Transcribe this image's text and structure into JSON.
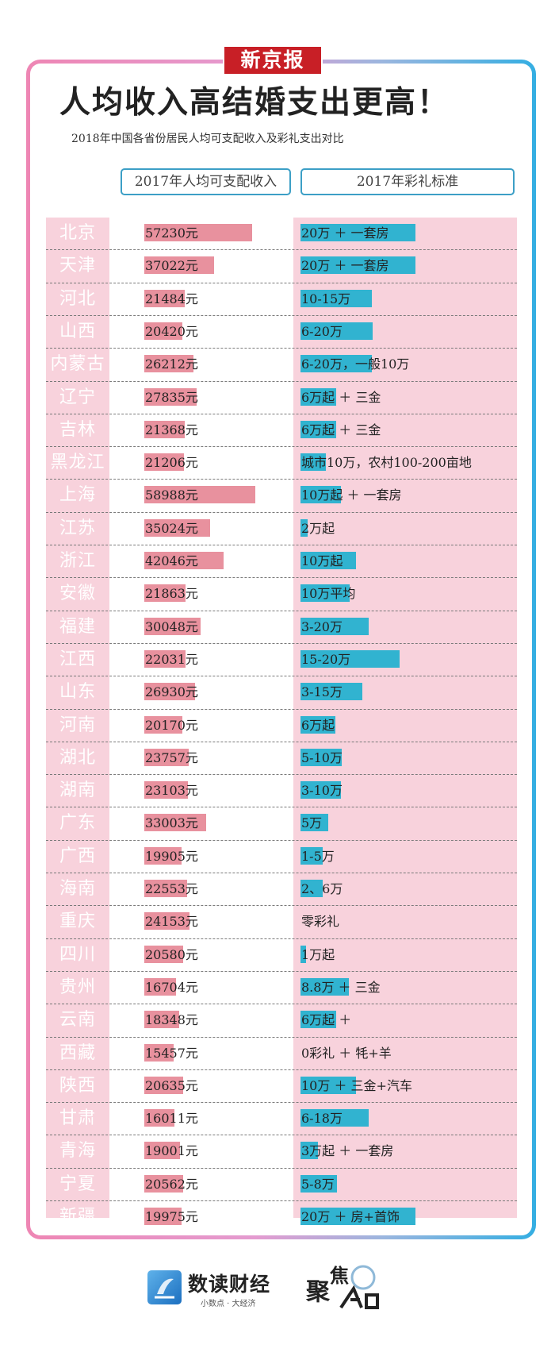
{
  "brand": "新京报",
  "title": "人均收入高结婚支出更高！",
  "subtitle": "2018年中国各省份居民人均可支配收入及彩礼支出对比",
  "headers": {
    "income": "2017年人均可支配收入",
    "bride_price": "2017年彩礼标准"
  },
  "footer": {
    "name": "数读财经",
    "slogan": "小数点 · 大经济",
    "seal": "聚焦"
  },
  "colors": {
    "income_bar": "#e8919e",
    "bride_bar": "#31b3d0",
    "panel": "#f8d2dc",
    "brand_red": "#c81f26"
  },
  "chart_data": {
    "type": "bar",
    "title": "人均收入高结婚支出更高！",
    "series": [
      {
        "name": "2017年人均可支配收入",
        "unit": "元",
        "values": [
          57230,
          37022,
          21484,
          20420,
          26212,
          27835,
          21368,
          21206,
          58988,
          35024,
          42046,
          21863,
          30048,
          22031,
          26930,
          20170,
          23757,
          23103,
          33003,
          19905,
          22553,
          24153,
          20580,
          16704,
          18348,
          15457,
          20635,
          16011,
          19001,
          20562,
          19975
        ]
      },
      {
        "name": "2017年彩礼标准",
        "values": [
          "20万 ＋ 一套房",
          "20万 ＋ 一套房",
          "10-15万",
          "6-20万",
          "6-20万，一般10万",
          "6万起 ＋ 三金",
          "6万起 ＋ 三金",
          "城市10万，农村100-200亩地",
          "10万起 ＋ 一套房",
          "2万起",
          "10万起",
          "10万平均",
          "3-20万",
          "15-20万",
          "3-15万",
          "6万起",
          "5-10万",
          "3-10万",
          "5万",
          "1-5万",
          "2、6万",
          "零彩礼",
          "1万起",
          "8.8万 ＋ 三金",
          "6万起 ＋",
          "0彩礼 ＋ 牦+羊",
          "10万 ＋ 三金+汽车",
          "6-18万",
          "3万起 ＋ 一套房",
          "5-8万",
          "20万 ＋ 房+首饰"
        ],
        "bar_fraction": [
          1.0,
          1.0,
          0.62,
          0.63,
          0.62,
          0.31,
          0.31,
          0.22,
          0.35,
          0.06,
          0.48,
          0.43,
          0.59,
          0.86,
          0.54,
          0.3,
          0.36,
          0.35,
          0.24,
          0.19,
          0.19,
          0.0,
          0.05,
          0.42,
          0.31,
          0.0,
          0.48,
          0.59,
          0.15,
          0.32,
          1.0
        ]
      }
    ],
    "categories": [
      "北京",
      "天津",
      "河北",
      "山西",
      "内蒙古",
      "辽宁",
      "吉林",
      "黑龙江",
      "上海",
      "江苏",
      "浙江",
      "安徽",
      "福建",
      "江西",
      "山东",
      "河南",
      "湖北",
      "湖南",
      "广东",
      "广西",
      "海南",
      "重庆",
      "四川",
      "贵州",
      "云南",
      "西藏",
      "陕西",
      "甘肃",
      "青海",
      "宁夏",
      "新疆"
    ]
  }
}
